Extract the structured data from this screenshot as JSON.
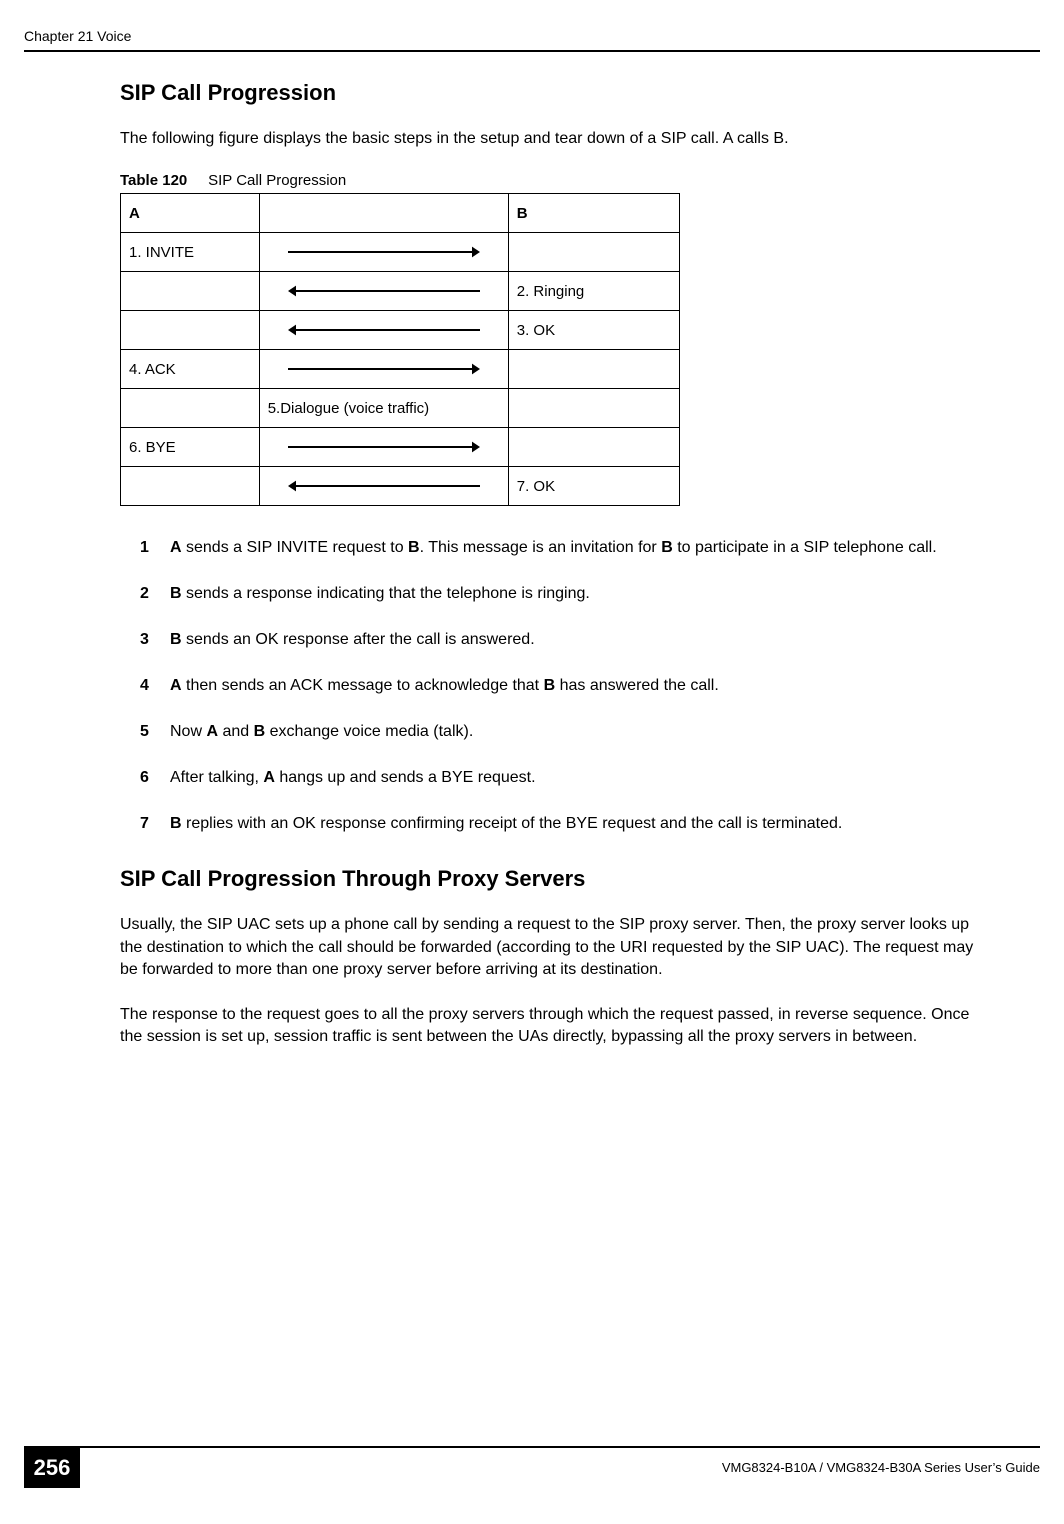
{
  "header": {
    "chapter_title": "Chapter 21 Voice"
  },
  "section1": {
    "heading": "SIP Call Progression",
    "intro": "The following figure displays the basic steps in the setup and tear down of a SIP call. A calls B."
  },
  "table": {
    "caption_label": "Table 120",
    "caption_text": "SIP Call Progression",
    "header_a": "A",
    "header_b": "B",
    "colors": {
      "border": "#000000",
      "arrow_stroke": "#000000"
    },
    "arrow": {
      "line_width": 2,
      "head_size": 8
    },
    "rows": [
      {
        "a": "1. INVITE",
        "mid_type": "arrow_right",
        "b": ""
      },
      {
        "a": "",
        "mid_type": "arrow_left",
        "b": "2. Ringing"
      },
      {
        "a": "",
        "mid_type": "arrow_left",
        "b": "3. OK"
      },
      {
        "a": "4. ACK",
        "mid_type": "arrow_right",
        "b": ""
      },
      {
        "a": "",
        "mid_type": "text",
        "mid_text": "5.Dialogue (voice traffic)",
        "b": ""
      },
      {
        "a": "6. BYE",
        "mid_type": "arrow_right",
        "b": ""
      },
      {
        "a": "",
        "mid_type": "arrow_left",
        "b": "7. OK"
      }
    ]
  },
  "steps": {
    "item1_pre": "A",
    "item1_mid": " sends a SIP INVITE request to ",
    "item1_b": "B",
    "item1_post1": ". This message is an invitation for ",
    "item1_b2": "B",
    "item1_post2": " to participate in a SIP telephone call.",
    "item2_pre": "B",
    "item2_post": " sends a response indicating that the telephone is ringing.",
    "item3_pre": "B",
    "item3_post": " sends an OK response after the call is answered.",
    "item4_pre": "A",
    "item4_mid": " then sends an ACK message to acknowledge that ",
    "item4_b": "B",
    "item4_post": " has answered the call.",
    "item5_pre": "Now ",
    "item5_a": "A",
    "item5_mid": " and ",
    "item5_b": "B",
    "item5_post": " exchange voice media (talk).",
    "item6_pre": "After talking, ",
    "item6_a": "A",
    "item6_post": " hangs up and sends a BYE request.",
    "item7_pre": "B",
    "item7_post": " replies with an OK response confirming receipt of the BYE request and the call is terminated."
  },
  "section2": {
    "heading": "SIP Call Progression Through Proxy Servers",
    "para1": "Usually, the SIP UAC sets up a phone call by sending a request to the SIP proxy server. Then, the proxy server looks up the destination to which the call should be forwarded (according to the URI requested by the SIP UAC). The request may be forwarded to more than one proxy server before arriving at its destination.",
    "para2": "The response to the request goes to all the proxy servers through which the request passed, in reverse sequence. Once the session is set up, session traffic is sent between the UAs directly, bypassing all the proxy servers in between."
  },
  "footer": {
    "page_number": "256",
    "doc_title": "VMG8324-B10A / VMG8324-B30A Series User’s Guide"
  }
}
